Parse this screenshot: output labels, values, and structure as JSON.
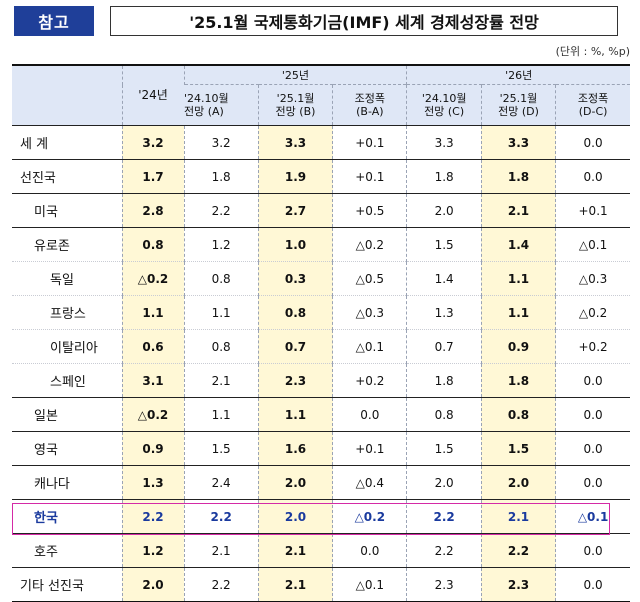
{
  "header": {
    "tag": "참고",
    "title": "'25.1월 국제통화기금(IMF) 세계 경제성장률 전망",
    "unit": "(단위 : %, %p)"
  },
  "table": {
    "year_headers": {
      "y24": "'24년",
      "y25": "'25년",
      "y26": "'26년"
    },
    "sub_headers": {
      "c2": [
        "'24.10월",
        "전망 (A)"
      ],
      "c3": [
        "'25.1월",
        "전망 (B)"
      ],
      "c4": [
        "조정폭",
        "(B-A)"
      ],
      "c5": [
        "'24.10월",
        "전망 (C)"
      ],
      "c6": [
        "'25.1월",
        "전망 (D)"
      ],
      "c7": [
        "조정폭",
        "(D-C)"
      ]
    },
    "rows": [
      {
        "label": "세  계",
        "v": [
          "3.2",
          "3.2",
          "3.3",
          "+0.1",
          "3.3",
          "3.3",
          "0.0"
        ]
      },
      {
        "label": "선진국",
        "v": [
          "1.7",
          "1.8",
          "1.9",
          "+0.1",
          "1.8",
          "1.8",
          "0.0"
        ]
      },
      {
        "label": "미국",
        "v": [
          "2.8",
          "2.2",
          "2.7",
          "+0.5",
          "2.0",
          "2.1",
          "+0.1"
        ]
      },
      {
        "label": "유로존",
        "v": [
          "0.8",
          "1.2",
          "1.0",
          "△0.2",
          "1.5",
          "1.4",
          "△0.1"
        ]
      },
      {
        "label": "독일",
        "v": [
          "△0.2",
          "0.8",
          "0.3",
          "△0.5",
          "1.4",
          "1.1",
          "△0.3"
        ]
      },
      {
        "label": "프랑스",
        "v": [
          "1.1",
          "1.1",
          "0.8",
          "△0.3",
          "1.3",
          "1.1",
          "△0.2"
        ]
      },
      {
        "label": "이탈리아",
        "v": [
          "0.6",
          "0.8",
          "0.7",
          "△0.1",
          "0.7",
          "0.9",
          "+0.2"
        ]
      },
      {
        "label": "스페인",
        "v": [
          "3.1",
          "2.1",
          "2.3",
          "+0.2",
          "1.8",
          "1.8",
          "0.0"
        ]
      },
      {
        "label": "일본",
        "v": [
          "△0.2",
          "1.1",
          "1.1",
          "0.0",
          "0.8",
          "0.8",
          "0.0"
        ]
      },
      {
        "label": "영국",
        "v": [
          "0.9",
          "1.5",
          "1.6",
          "+0.1",
          "1.5",
          "1.5",
          "0.0"
        ]
      },
      {
        "label": "캐나다",
        "v": [
          "1.3",
          "2.4",
          "2.0",
          "△0.4",
          "2.0",
          "2.0",
          "0.0"
        ]
      },
      {
        "label": "한국",
        "v": [
          "2.2",
          "2.2",
          "2.0",
          "△0.2",
          "2.2",
          "2.1",
          "△0.1"
        ]
      },
      {
        "label": "호주",
        "v": [
          "1.2",
          "2.1",
          "2.1",
          "0.0",
          "2.2",
          "2.2",
          "0.0"
        ]
      },
      {
        "label": "기타 선진국",
        "v": [
          "2.0",
          "2.2",
          "2.1",
          "△0.1",
          "2.3",
          "2.3",
          "0.0"
        ]
      }
    ]
  },
  "colors": {
    "tag_bg": "#1f3f99",
    "header_bg": "#dfe7f6",
    "highlight_col_bg": "#fff8d6",
    "korea_text": "#1a3a9e",
    "korea_border": "#d42aa6"
  }
}
